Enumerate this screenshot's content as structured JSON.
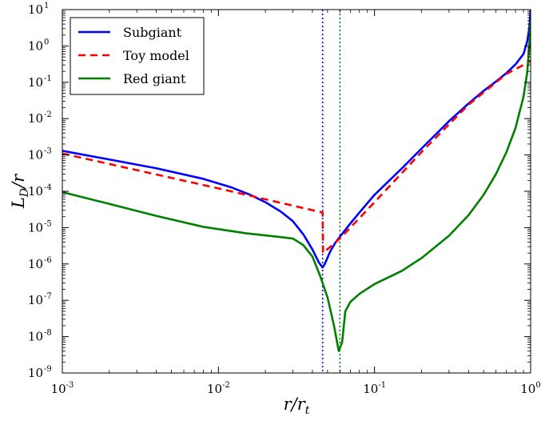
{
  "chart_data": {
    "type": "line",
    "xscale": "log",
    "yscale": "log",
    "xlim": [
      0.001,
      1.0
    ],
    "ylim": [
      1e-09,
      10
    ],
    "grid": false,
    "legend_position": "top-left",
    "xlabel": {
      "main": "r/r",
      "sub": "t"
    },
    "ylabel": {
      "main": "L",
      "sub": "D",
      "tail": "/r"
    },
    "x_ticks": [
      {
        "value": 0.001,
        "base": "10",
        "exp": "-3"
      },
      {
        "value": 0.01,
        "base": "10",
        "exp": "-2"
      },
      {
        "value": 0.1,
        "base": "10",
        "exp": "-1"
      },
      {
        "value": 1.0,
        "base": "10",
        "exp": "0"
      }
    ],
    "y_ticks": [
      {
        "value": 1e-09,
        "base": "10",
        "exp": "-9"
      },
      {
        "value": 1e-08,
        "base": "10",
        "exp": "-8"
      },
      {
        "value": 1e-07,
        "base": "10",
        "exp": "-7"
      },
      {
        "value": 1e-06,
        "base": "10",
        "exp": "-6"
      },
      {
        "value": 1e-05,
        "base": "10",
        "exp": "-5"
      },
      {
        "value": 0.0001,
        "base": "10",
        "exp": "-4"
      },
      {
        "value": 0.001,
        "base": "10",
        "exp": "-3"
      },
      {
        "value": 0.01,
        "base": "10",
        "exp": "-2"
      },
      {
        "value": 0.1,
        "base": "10",
        "exp": "-1"
      },
      {
        "value": 1,
        "base": "10",
        "exp": "0"
      },
      {
        "value": 10,
        "base": "10",
        "exp": "1"
      }
    ],
    "series": [
      {
        "name": "Subgiant",
        "color": "#0000ff",
        "style": "solid",
        "points": [
          [
            0.001,
            0.0013
          ],
          [
            0.002,
            0.00075
          ],
          [
            0.004,
            0.00043
          ],
          [
            0.008,
            0.00022
          ],
          [
            0.012,
            0.00013
          ],
          [
            0.016,
            8e-05
          ],
          [
            0.02,
            5e-05
          ],
          [
            0.025,
            2.8e-05
          ],
          [
            0.03,
            1.5e-05
          ],
          [
            0.035,
            6.5e-06
          ],
          [
            0.04,
            2.5e-06
          ],
          [
            0.044,
            1.1e-06
          ],
          [
            0.0465,
            8e-07
          ],
          [
            0.048,
            1e-06
          ],
          [
            0.052,
            2.2e-06
          ],
          [
            0.056,
            3.8e-06
          ],
          [
            0.06,
            5.6e-06
          ],
          [
            0.07,
            1.3e-05
          ],
          [
            0.08,
            2.6e-05
          ],
          [
            0.1,
            8e-05
          ],
          [
            0.15,
            0.00043
          ],
          [
            0.2,
            0.0015
          ],
          [
            0.3,
            0.0085
          ],
          [
            0.4,
            0.026
          ],
          [
            0.5,
            0.058
          ],
          [
            0.6,
            0.105
          ],
          [
            0.7,
            0.18
          ],
          [
            0.8,
            0.31
          ],
          [
            0.9,
            0.6
          ],
          [
            0.95,
            1.3
          ],
          [
            0.98,
            3.0
          ],
          [
            1.0,
            10
          ]
        ]
      },
      {
        "name": "Toy model",
        "color": "#ff0000",
        "style": "dashed",
        "points": [
          [
            0.001,
            0.0011
          ],
          [
            0.01,
            0.00012
          ],
          [
            0.0465,
            2.6e-05
          ],
          [
            0.0468,
            2e-06
          ],
          [
            0.06,
            5e-06
          ],
          [
            0.1,
            5e-05
          ],
          [
            0.2,
            0.0012
          ],
          [
            0.4,
            0.024
          ],
          [
            0.7,
            0.17
          ],
          [
            1.0,
            0.38
          ]
        ]
      },
      {
        "name": "Red giant",
        "color": "#008000",
        "style": "solid",
        "points": [
          [
            0.001,
            9.5e-05
          ],
          [
            0.002,
            4.5e-05
          ],
          [
            0.004,
            2.1e-05
          ],
          [
            0.008,
            1.05e-05
          ],
          [
            0.015,
            7e-06
          ],
          [
            0.025,
            5.5e-06
          ],
          [
            0.03,
            5e-06
          ],
          [
            0.035,
            3.3e-06
          ],
          [
            0.04,
            1.6e-06
          ],
          [
            0.045,
            4.5e-07
          ],
          [
            0.05,
            1.2e-07
          ],
          [
            0.055,
            2e-08
          ],
          [
            0.059,
            4e-09
          ],
          [
            0.062,
            7e-09
          ],
          [
            0.065,
            5e-08
          ],
          [
            0.07,
            9e-08
          ],
          [
            0.08,
            1.5e-07
          ],
          [
            0.1,
            2.8e-07
          ],
          [
            0.15,
            6.5e-07
          ],
          [
            0.2,
            1.45e-06
          ],
          [
            0.3,
            6e-06
          ],
          [
            0.4,
            2.2e-05
          ],
          [
            0.5,
            8e-05
          ],
          [
            0.6,
            0.0003
          ],
          [
            0.7,
            0.0012
          ],
          [
            0.8,
            0.0055
          ],
          [
            0.9,
            0.04
          ],
          [
            0.95,
            0.18
          ],
          [
            0.98,
            1.0
          ],
          [
            1.0,
            5.0
          ]
        ]
      }
    ],
    "vlines": [
      {
        "x": 0.0465,
        "color": "#0000ff",
        "style": "dotted"
      },
      {
        "x": 0.06,
        "color": "#008000",
        "style": "dotted"
      }
    ]
  }
}
